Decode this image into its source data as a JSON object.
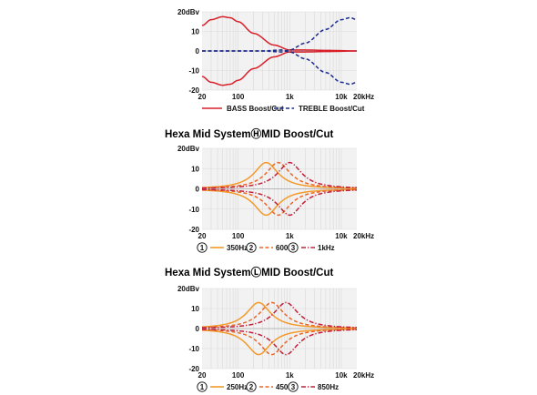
{
  "chart_data": [
    {
      "type": "line",
      "title": "",
      "xlabel": "",
      "ylabel": "",
      "x_scale": "log",
      "xlim": [
        20,
        20000
      ],
      "ylim": [
        -20,
        20
      ],
      "grid": true,
      "x_ticks": [
        "20",
        "100",
        "1k",
        "10k",
        "20kHz"
      ],
      "x_tick_values": [
        20,
        100,
        1000,
        10000,
        20000
      ],
      "y_ticks": [
        "20dBv",
        "10",
        "0",
        "-10",
        "-20"
      ],
      "y_tick_values": [
        20,
        10,
        0,
        -10,
        -20
      ],
      "legend_position": "bottom",
      "series": [
        {
          "name": "BASS Boost/Cut",
          "color": "#d8202a",
          "dash": "solid",
          "group": "boost",
          "x": [
            20,
            30,
            50,
            70,
            100,
            200,
            500,
            1000,
            2000,
            5000,
            20000
          ],
          "y": [
            13,
            16,
            17.5,
            17,
            15,
            9,
            3,
            0.5,
            0.5,
            0.3,
            0
          ]
        },
        {
          "name": "BASS Boost/Cut",
          "color": "#d8202a",
          "dash": "solid",
          "group": "cut",
          "x": [
            20,
            30,
            50,
            70,
            100,
            200,
            500,
            1000,
            2000,
            5000,
            20000
          ],
          "y": [
            -13,
            -16,
            -17.5,
            -17,
            -15,
            -9,
            -3,
            -0.5,
            -0.5,
            -0.3,
            0
          ]
        },
        {
          "name": "TREBLE Boost/Cut",
          "color": "#1c2a8c",
          "dash": "dashed",
          "group": "boost",
          "x": [
            20,
            100,
            300,
            700,
            1000,
            2000,
            5000,
            10000,
            15000,
            20000
          ],
          "y": [
            0,
            0,
            0,
            -0.5,
            0.5,
            4,
            11,
            16,
            17,
            16
          ]
        },
        {
          "name": "TREBLE Boost/Cut",
          "color": "#1c2a8c",
          "dash": "dashed",
          "group": "cut",
          "x": [
            20,
            100,
            300,
            700,
            1000,
            2000,
            5000,
            10000,
            15000,
            20000
          ],
          "y": [
            0,
            0,
            0,
            0.5,
            -0.5,
            -4,
            -11,
            -16,
            -17,
            -16
          ]
        }
      ],
      "legend": [
        {
          "label": "BASS Boost/Cut",
          "color": "#d8202a",
          "dash": "solid"
        },
        {
          "label": "TREBLE Boost/Cut",
          "color": "#1c2a8c",
          "dash": "dashed"
        }
      ]
    },
    {
      "type": "line",
      "title": "Hexa Mid SystemⒽMID Boost/Cut",
      "xlabel": "",
      "ylabel": "",
      "x_scale": "log",
      "xlim": [
        20,
        20000
      ],
      "ylim": [
        -20,
        20
      ],
      "grid": true,
      "x_ticks": [
        "20",
        "100",
        "1k",
        "10k",
        "20kHz"
      ],
      "x_tick_values": [
        20,
        100,
        1000,
        10000,
        20000
      ],
      "y_ticks": [
        "20dBv",
        "10",
        "0",
        "-10",
        "-20"
      ],
      "y_tick_values": [
        20,
        10,
        0,
        -10,
        -20
      ],
      "legend_position": "bottom",
      "peak_gain_db": 13,
      "series": [
        {
          "name": "350Hz",
          "center_hz": 350,
          "color": "#f39a2a",
          "dash": "solid"
        },
        {
          "name": "600Hz",
          "center_hz": 600,
          "color": "#e8682a",
          "dash": "dashed"
        },
        {
          "name": "1kHz",
          "center_hz": 1000,
          "color": "#c2203c",
          "dash": "dashdot"
        }
      ],
      "legend": [
        {
          "number": "1",
          "label": "350Hz",
          "color": "#f39a2a",
          "dash": "solid"
        },
        {
          "number": "2",
          "label": "600Hz",
          "color": "#e8682a",
          "dash": "dashed"
        },
        {
          "number": "3",
          "label": "1kHz",
          "color": "#c2203c",
          "dash": "dashdot"
        }
      ]
    },
    {
      "type": "line",
      "title": "Hexa Mid SystemⓁMID Boost/Cut",
      "xlabel": "",
      "ylabel": "",
      "x_scale": "log",
      "xlim": [
        20,
        20000
      ],
      "ylim": [
        -20,
        20
      ],
      "grid": true,
      "x_ticks": [
        "20",
        "100",
        "1k",
        "10k",
        "20kHz"
      ],
      "x_tick_values": [
        20,
        100,
        1000,
        10000,
        20000
      ],
      "y_ticks": [
        "20dBv",
        "10",
        "0",
        "-10",
        "-20"
      ],
      "y_tick_values": [
        20,
        10,
        0,
        -10,
        -20
      ],
      "legend_position": "bottom",
      "peak_gain_db": 13,
      "series": [
        {
          "name": "250Hz",
          "center_hz": 250,
          "color": "#f39a2a",
          "dash": "solid"
        },
        {
          "name": "450Hz",
          "center_hz": 450,
          "color": "#e8682a",
          "dash": "dashed"
        },
        {
          "name": "850Hz",
          "center_hz": 850,
          "color": "#c2203c",
          "dash": "dashdot"
        }
      ],
      "legend": [
        {
          "number": "1",
          "label": "250Hz",
          "color": "#f39a2a",
          "dash": "solid"
        },
        {
          "number": "2",
          "label": "450Hz",
          "color": "#e8682a",
          "dash": "dashed"
        },
        {
          "number": "3",
          "label": "850Hz",
          "color": "#c2203c",
          "dash": "dashdot"
        }
      ]
    }
  ]
}
